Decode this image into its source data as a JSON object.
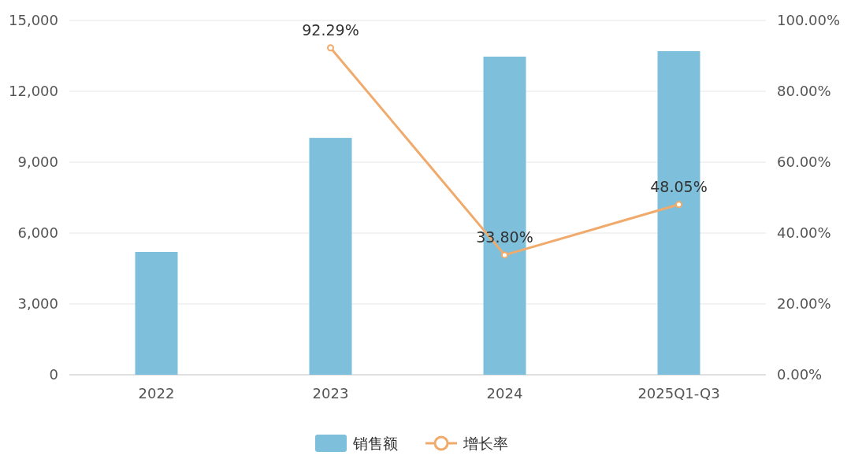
{
  "chart_data": {
    "type": "bar",
    "categories": [
      "2022",
      "2023",
      "2024",
      "2025Q1-Q3"
    ],
    "series": [
      {
        "name": "销售额",
        "color": "#7ebfdb",
        "values": [
          5200,
          10030,
          13470,
          13700
        ]
      },
      {
        "name": "增长率",
        "type": "line",
        "axis": "y2",
        "color": "#f0ab6c",
        "values": [
          null,
          92.29,
          33.8,
          48.05
        ],
        "value_labels": [
          null,
          "92.29%",
          "33.80%",
          "48.05%"
        ]
      }
    ],
    "ylim": [
      0,
      15000
    ],
    "yticks": [
      {
        "value": 0,
        "label": "0"
      },
      {
        "value": 3000,
        "label": "3,000"
      },
      {
        "value": 6000,
        "label": "6,000"
      },
      {
        "value": 9000,
        "label": "9,000"
      },
      {
        "value": 12000,
        "label": "12,000"
      },
      {
        "value": 15000,
        "label": "15,000"
      }
    ],
    "y2lim": [
      0,
      100
    ],
    "y2ticks": [
      {
        "value": 0,
        "label": "0.00%"
      },
      {
        "value": 20,
        "label": "20.00%"
      },
      {
        "value": 40,
        "label": "40.00%"
      },
      {
        "value": 60,
        "label": "60.00%"
      },
      {
        "value": 80,
        "label": "80.00%"
      },
      {
        "value": 100,
        "label": "100.00%"
      }
    ],
    "grid": "y",
    "legend": "bottom",
    "marker": "circle"
  }
}
